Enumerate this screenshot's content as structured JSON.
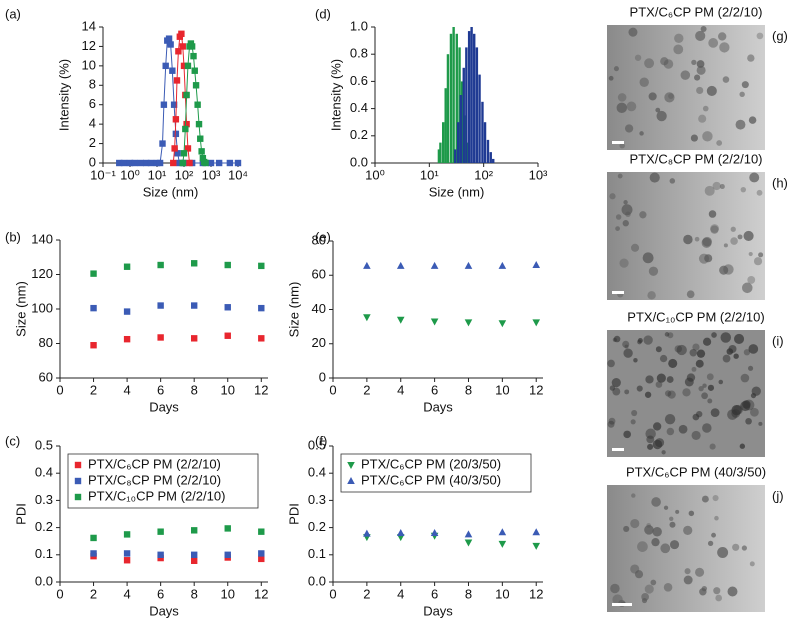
{
  "chart_data": [
    {
      "type": "line",
      "panel_label": "(a)",
      "xlabel": "Size (nm)",
      "ylabel": "Intensity (%)",
      "log_x": true,
      "marker": "square",
      "xlim": [
        0.1,
        10000
      ],
      "xticks": [
        {
          "value": 0.1,
          "label": "10⁻¹"
        },
        {
          "value": 1,
          "label": "10⁰"
        },
        {
          "value": 10,
          "label": "10¹"
        },
        {
          "value": 100,
          "label": "10²"
        },
        {
          "value": 1000,
          "label": "10³"
        },
        {
          "value": 10000,
          "label": "10⁴"
        }
      ],
      "ylim": [
        0,
        14
      ],
      "yticks": [
        0,
        2,
        4,
        6,
        8,
        10,
        12,
        14
      ],
      "series": [
        {
          "color": "#3b5bb5",
          "x": [
            0.4,
            0.6,
            1,
            1.5,
            2.5,
            4,
            6,
            10,
            13,
            16,
            18,
            21,
            24,
            28,
            32,
            37,
            43,
            50,
            58,
            68,
            100,
            200,
            500,
            1000,
            2000,
            5000,
            10000
          ],
          "values": [
            0,
            0,
            0,
            0,
            0,
            0,
            0,
            0,
            0,
            2,
            6,
            10,
            12.6,
            12.8,
            12.2,
            9.5,
            6,
            3,
            1,
            0,
            0,
            0,
            0,
            0,
            0,
            0,
            0
          ]
        },
        {
          "color": "#e8262e",
          "x": [
            40,
            45,
            50,
            55,
            62,
            70,
            80,
            90,
            100,
            112,
            125,
            140,
            160
          ],
          "values": [
            0,
            1.5,
            4.5,
            8.5,
            11.5,
            13,
            13.3,
            12,
            10,
            7,
            4,
            1.5,
            0
          ]
        },
        {
          "color": "#1e9a4a",
          "x": [
            90,
            100,
            112,
            125,
            140,
            160,
            180,
            200,
            225,
            250,
            280,
            320,
            360,
            400,
            450,
            500,
            560,
            630
          ],
          "values": [
            0,
            1,
            3.5,
            7,
            10,
            12,
            12.3,
            12,
            11,
            9.5,
            8,
            6,
            4,
            2.5,
            1.2,
            0.5,
            0.1,
            0
          ]
        }
      ]
    },
    {
      "type": "bar",
      "panel_label": "(d)",
      "xlabel": "Size (nm)",
      "ylabel": "Intensity (%)",
      "log_x": true,
      "xlim": [
        1,
        1000
      ],
      "xticks": [
        {
          "value": 1,
          "label": "10⁰"
        },
        {
          "value": 10,
          "label": "10¹"
        },
        {
          "value": 100,
          "label": "10²"
        },
        {
          "value": 1000,
          "label": "10³"
        }
      ],
      "ylim": [
        0,
        1
      ],
      "yticks": [
        {
          "value": 0,
          "label": "0.0"
        },
        0.2,
        0.4,
        0.6,
        0.8,
        {
          "value": 1,
          "label": "1.0"
        }
      ],
      "series": [
        {
          "color": "#1e9a4a",
          "x": [
            15,
            16,
            18,
            20,
            22,
            25,
            28,
            32,
            36,
            40,
            45,
            50
          ],
          "values": [
            0.1,
            0.15,
            0.3,
            0.55,
            0.8,
            0.95,
            1.0,
            0.95,
            0.85,
            0.6,
            0.35,
            0.15
          ]
        },
        {
          "color": "#1f3a93",
          "x": [
            30,
            34,
            38,
            43,
            48,
            54,
            60,
            67,
            75,
            84,
            95,
            106,
            120,
            135,
            150
          ],
          "values": [
            0.1,
            0.3,
            0.5,
            0.7,
            0.85,
            0.97,
            1.0,
            0.95,
            0.85,
            0.65,
            0.45,
            0.3,
            0.17,
            0.08,
            0.03
          ]
        }
      ]
    },
    {
      "type": "scatter",
      "panel_label": "(b)",
      "xlabel": "Days",
      "ylabel": "Size (nm)",
      "xlim": [
        0,
        12.4
      ],
      "xticks": [
        0,
        2,
        4,
        6,
        8,
        10,
        12
      ],
      "ylim": [
        60,
        140
      ],
      "yticks": [
        60,
        80,
        100,
        120,
        140
      ],
      "x": [
        2,
        4,
        6,
        8,
        10,
        12
      ],
      "series": [
        {
          "color": "#1e9a4a",
          "marker": "square",
          "values": [
            120.5,
            124.5,
            125.5,
            126.5,
            125.5,
            125
          ]
        },
        {
          "color": "#3b5bb5",
          "marker": "square",
          "values": [
            100.5,
            98.5,
            102,
            102,
            101,
            100.5
          ]
        },
        {
          "color": "#e8262e",
          "marker": "square",
          "values": [
            79,
            82.5,
            83.5,
            83,
            84.5,
            83
          ]
        }
      ]
    },
    {
      "type": "scatter",
      "panel_label": "(e)",
      "xlabel": "Days",
      "ylabel": "Size (nm)",
      "xlim": [
        0,
        12.4
      ],
      "xticks": [
        0,
        2,
        4,
        6,
        8,
        10,
        12
      ],
      "ylim": [
        0,
        80
      ],
      "yticks": [
        0,
        20,
        40,
        60,
        80
      ],
      "x": [
        2,
        4,
        6,
        8,
        10,
        12
      ],
      "series": [
        {
          "color": "#3b5bb5",
          "marker": "triangle-up",
          "values": [
            65.5,
            65.5,
            65.5,
            65.5,
            65.5,
            66
          ]
        },
        {
          "color": "#1e9a4a",
          "marker": "triangle-down",
          "values": [
            35.5,
            34,
            33,
            32.5,
            32,
            32.5
          ]
        }
      ]
    },
    {
      "type": "scatter",
      "panel_label": "(c)",
      "xlabel": "Days",
      "ylabel": "PDI",
      "legend": "upper left",
      "xlim": [
        0,
        12.4
      ],
      "xticks": [
        0,
        2,
        4,
        6,
        8,
        10,
        12
      ],
      "ylim": [
        0,
        0.5
      ],
      "yticks": [
        {
          "value": 0,
          "label": "0.0"
        },
        0.1,
        0.2,
        0.3,
        0.4,
        0.5
      ],
      "x": [
        2,
        4,
        6,
        8,
        10,
        12
      ],
      "series": [
        {
          "name": "PTX/C₆CP PM (2/2/10)",
          "color": "#e8262e",
          "marker": "square",
          "values": [
            0.095,
            0.08,
            0.088,
            0.078,
            0.09,
            0.085
          ]
        },
        {
          "name": "PTX/C₈CP PM (2/2/10)",
          "color": "#3b5bb5",
          "marker": "square",
          "values": [
            0.105,
            0.105,
            0.1,
            0.1,
            0.1,
            0.105
          ]
        },
        {
          "name": "PTX/C₁₀CP PM (2/2/10)",
          "color": "#1e9a4a",
          "marker": "square",
          "values": [
            0.162,
            0.175,
            0.185,
            0.19,
            0.197,
            0.185
          ]
        }
      ]
    },
    {
      "type": "scatter",
      "panel_label": "(f)",
      "xlabel": "Days",
      "ylabel": "PDI",
      "legend": "upper left",
      "xlim": [
        0,
        12.4
      ],
      "xticks": [
        0,
        2,
        4,
        6,
        8,
        10,
        12
      ],
      "ylim": [
        0,
        0.5
      ],
      "yticks": [
        {
          "value": 0,
          "label": "0.0"
        },
        0.1,
        0.2,
        0.3,
        0.4,
        0.5
      ],
      "x": [
        2,
        4,
        6,
        8,
        10,
        12
      ],
      "series": [
        {
          "name": "PTX/C₆CP PM (20/3/50)",
          "color": "#1e9a4a",
          "marker": "triangle-down",
          "values": [
            0.165,
            0.165,
            0.17,
            0.145,
            0.14,
            0.133
          ]
        },
        {
          "name": "PTX/C₆CP PM (40/3/50)",
          "color": "#3b5bb5",
          "marker": "triangle-up",
          "values": [
            0.178,
            0.18,
            0.18,
            0.175,
            0.183,
            0.183
          ]
        }
      ]
    }
  ],
  "images": [
    {
      "label": "(g)",
      "title": "PTX/C₆CP PM (2/2/10)"
    },
    {
      "label": "(h)",
      "title": "PTX/C₈CP PM (2/2/10)"
    },
    {
      "label": "(i)",
      "title": "PTX/C₁₀CP PM (2/2/10)"
    },
    {
      "label": "(j)",
      "title": "PTX/C₆CP PM (40/3/50)"
    }
  ]
}
